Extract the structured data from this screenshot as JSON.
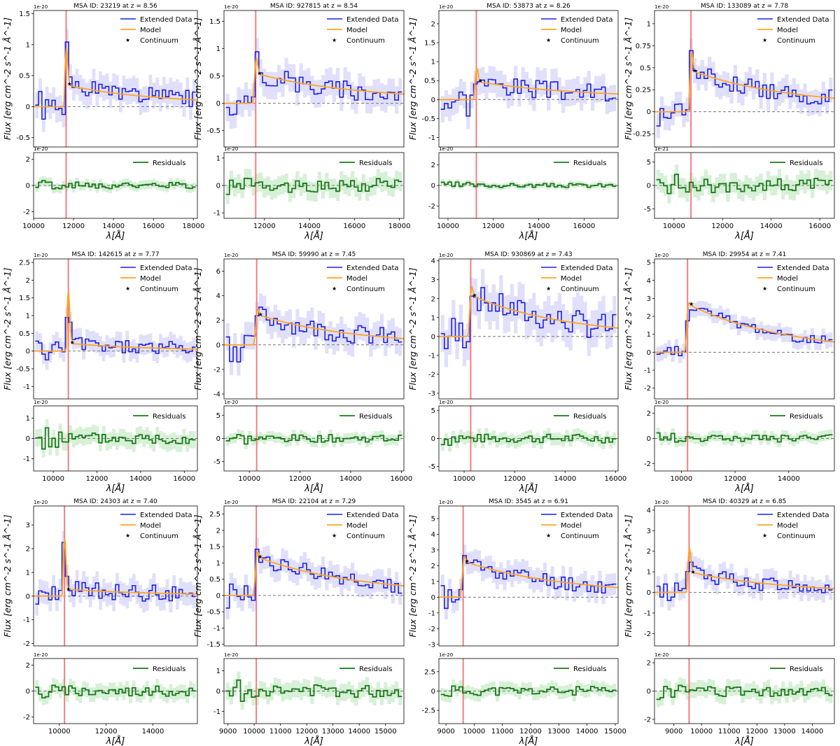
{
  "figure": {
    "legend_labels": {
      "data": "Extended Data",
      "model": "Model",
      "continuum": "Continuum",
      "residuals": "Residuals"
    },
    "ylabel_main": "Flux [erg cm⁻² s⁻¹ Å⁻¹]",
    "ylabel_main_display": "Flux [erg cm^-2 s^-1 Å^-1]",
    "xlabel": "λ[Å]",
    "colors": {
      "data": "#1f1fe8",
      "band": "#d5d5fb",
      "model": "#ffa51f",
      "continuum": "#000000",
      "residuals": "#1a7a1a",
      "resid_band": "#cdeccd",
      "lyalpha_line": "#f08080",
      "zero_line": "#777777"
    }
  },
  "chart_data": [
    {
      "type": "line",
      "title": "MSA ID: 23219 at z = 8.56",
      "exponent": "1e-20",
      "resid_exponent": "1e-20",
      "xlim": [
        10000,
        18200
      ],
      "ylim": [
        -0.65,
        1.55
      ],
      "yticks": [
        -0.5,
        0.0,
        0.5,
        1.0,
        1.5
      ],
      "rylim": [
        -2.5,
        2.5
      ],
      "ryticks": [
        -2,
        0,
        2
      ],
      "xticks": [
        10000,
        12000,
        14000,
        16000,
        18000
      ],
      "line_x": 11630,
      "peak_amp": 0.75,
      "cont_amp": 0.35,
      "slope": 0.25,
      "cont_point": [
        11600,
        0.37
      ],
      "noise": 0.15,
      "resid_noise": 0.25,
      "seed": 1,
      "legend_continuum": true
    },
    {
      "type": "line",
      "title": "MSA ID: 927815 at z = 8.54",
      "exponent": "1e-20",
      "resid_exponent": "1e-20",
      "xlim": [
        10200,
        18200
      ],
      "ylim": [
        -0.8,
        1.7
      ],
      "yticks": [
        -0.5,
        0.0,
        0.5,
        1.0,
        1.5
      ],
      "rylim": [
        -1.2,
        1.2
      ],
      "ryticks": [
        -1,
        0,
        1
      ],
      "xticks": [
        12000,
        14000,
        16000,
        18000
      ],
      "line_x": 11610,
      "peak_amp": 0.5,
      "cont_amp": 0.55,
      "slope": 0.25,
      "cont_point": [
        11610,
        0.55
      ],
      "noise": 0.18,
      "resid_noise": 0.25,
      "seed": 2,
      "legend_continuum": true
    },
    {
      "type": "line",
      "title": "MSA ID: 53873 at z = 8.26",
      "exponent": "1e-20",
      "resid_exponent": "1e-20",
      "xlim": [
        9600,
        17500
      ],
      "ylim": [
        -1.25,
        2.35
      ],
      "yticks": [
        -1.0,
        -0.5,
        0.0,
        0.5,
        1.0,
        1.5,
        2.0
      ],
      "rylim": [
        -3.2,
        3.2
      ],
      "ryticks": [
        -2,
        0,
        2
      ],
      "xticks": [
        10000,
        12000,
        14000,
        16000
      ],
      "line_x": 11250,
      "peak_amp": 0.55,
      "cont_amp": 0.48,
      "slope": 0.25,
      "cont_point": [
        11250,
        0.5
      ],
      "noise": 0.25,
      "resid_noise": 0.2,
      "seed": 3,
      "legend_continuum": true
    },
    {
      "type": "line",
      "title": "MSA ID: 133089 at z = 7.78",
      "exponent": "1e-20",
      "resid_exponent": "1e-21",
      "xlim": [
        9200,
        16600
      ],
      "ylim": [
        -0.4,
        1.15
      ],
      "yticks": [
        -0.25,
        0.0,
        0.25,
        0.5,
        0.75,
        1.0
      ],
      "rylim": [
        -7,
        7
      ],
      "ryticks": [
        -5,
        0,
        5
      ],
      "xticks": [
        10000,
        12000,
        14000,
        16000
      ],
      "line_x": 10700,
      "peak_amp": 0.38,
      "cont_amp": 0.47,
      "slope": 0.22,
      "cont_point": [
        10700,
        0.47
      ],
      "noise": 0.1,
      "resid_noise": 1.5,
      "seed": 4,
      "legend_continuum": true
    },
    {
      "type": "line",
      "title": "MSA ID: 142615 at z = 7.77",
      "exponent": "1e-20",
      "resid_exponent": "1e-20",
      "xlim": [
        9100,
        16600
      ],
      "ylim": [
        -1.35,
        2.6
      ],
      "yticks": [
        -1.0,
        -0.5,
        0.0,
        0.5,
        1.0,
        1.5,
        2.0,
        2.5
      ],
      "rylim": [
        -1.6,
        1.6
      ],
      "ryticks": [
        -1,
        0,
        1
      ],
      "xticks": [
        10000,
        12000,
        14000,
        16000
      ],
      "line_x": 10690,
      "peak_amp": 1.55,
      "cont_amp": 0.22,
      "slope": 0.4,
      "cont_point": [
        10690,
        0.25
      ],
      "noise": 0.2,
      "resid_noise": 0.3,
      "seed": 5,
      "legend_continuum": true
    },
    {
      "type": "line",
      "title": "MSA ID: 59990 at z = 7.45",
      "exponent": "1e-20",
      "resid_exponent": "1e-20",
      "xlim": [
        9000,
        16100
      ],
      "ylim": [
        -4.4,
        7.0
      ],
      "yticks": [
        -4,
        -2,
        0,
        2,
        4,
        6
      ],
      "rylim": [
        -7,
        7
      ],
      "ryticks": [
        -5,
        0,
        5
      ],
      "xticks": [
        10000,
        12000,
        14000,
        16000
      ],
      "line_x": 10290,
      "peak_amp": 1.2,
      "cont_amp": 2.5,
      "slope": 0.5,
      "cont_point": [
        10290,
        2.5
      ],
      "noise": 0.8,
      "resid_noise": 0.8,
      "seed": 6,
      "legend_continuum": true
    },
    {
      "type": "line",
      "title": "MSA ID: 930869 at z = 7.43",
      "exponent": "1e-20",
      "resid_exponent": "1e-20",
      "xlim": [
        9000,
        16100
      ],
      "ylim": [
        -3.3,
        4.1
      ],
      "yticks": [
        -3,
        -2,
        -1,
        0,
        1,
        2,
        3,
        4
      ],
      "rylim": [
        -5.8,
        5.8
      ],
      "ryticks": [
        -5,
        0,
        5
      ],
      "xticks": [
        10000,
        12000,
        14000,
        16000
      ],
      "line_x": 10260,
      "peak_amp": 1.1,
      "cont_amp": 2.2,
      "slope": 0.5,
      "cont_point": [
        10260,
        2.2
      ],
      "noise": 0.7,
      "resid_noise": 0.8,
      "seed": 7,
      "legend_continuum": true
    },
    {
      "type": "line",
      "title": "MSA ID: 29954 at z = 7.41",
      "exponent": "1e-20",
      "resid_exponent": "1e-20",
      "xlim": [
        9000,
        15700
      ],
      "ylim": [
        -2.6,
        5.2
      ],
      "yticks": [
        -2,
        -1,
        0,
        1,
        2,
        3,
        4,
        5
      ],
      "rylim": [
        -2.6,
        2.6
      ],
      "ryticks": [
        -2,
        0,
        2
      ],
      "xticks": [
        10000,
        12000,
        14000
      ],
      "line_x": 10230,
      "peak_amp": 0.7,
      "cont_amp": 2.7,
      "slope": 0.5,
      "cont_point": [
        10230,
        2.7
      ],
      "noise": 0.3,
      "resid_noise": 0.3,
      "seed": 8,
      "legend_continuum": true
    },
    {
      "type": "line",
      "title": "MSA ID: 24303 at z = 7.40",
      "exponent": "1e-20",
      "resid_exponent": "1e-20",
      "xlim": [
        8900,
        15900
      ],
      "ylim": [
        -2.1,
        3.8
      ],
      "yticks": [
        -2,
        -1,
        0,
        1,
        2,
        3
      ],
      "rylim": [
        -2.5,
        2.5
      ],
      "ryticks": [
        -2,
        0,
        2
      ],
      "xticks": [
        10000,
        12000,
        14000
      ],
      "line_x": 10220,
      "peak_amp": 2.3,
      "cont_amp": 0.3,
      "slope": 0.3,
      "cont_point": [
        10220,
        0.3
      ],
      "noise": 0.35,
      "resid_noise": 0.4,
      "seed": 9,
      "legend_continuum": true
    },
    {
      "type": "line",
      "title": "MSA ID: 22104 at z = 7.29",
      "exponent": "1e-20",
      "resid_exponent": "1e-20",
      "xlim": [
        8850,
        15700
      ],
      "ylim": [
        -1.55,
        2.75
      ],
      "yticks": [
        -1.5,
        -1.0,
        -0.5,
        0.0,
        0.5,
        1.0,
        1.5,
        2.0,
        2.5
      ],
      "rylim": [
        -1.6,
        1.6
      ],
      "ryticks": [
        -1,
        0,
        1
      ],
      "xticks": [
        9000,
        10000,
        11000,
        12000,
        13000,
        14000,
        15000
      ],
      "line_x": 10080,
      "peak_amp": 0.5,
      "cont_amp": 1.2,
      "slope": 0.4,
      "cont_point": [
        10080,
        1.2
      ],
      "noise": 0.25,
      "resid_noise": 0.3,
      "seed": 10,
      "legend_continuum": true
    },
    {
      "type": "line",
      "title": "MSA ID: 3545 at z = 6.91",
      "exponent": "1e-20",
      "resid_exponent": "1e-20",
      "xlim": [
        8750,
        15100
      ],
      "ylim": [
        -3.1,
        5.8
      ],
      "yticks": [
        -3,
        -2,
        -1,
        0,
        1,
        2,
        3,
        4,
        5
      ],
      "rylim": [
        -4.2,
        4.2
      ],
      "ryticks": [
        -2.5,
        0.0,
        2.5
      ],
      "xticks": [
        9000,
        10000,
        11000,
        12000,
        13000,
        14000,
        15000
      ],
      "line_x": 9610,
      "peak_amp": 1.0,
      "cont_amp": 2.3,
      "slope": 0.35,
      "cont_point": [
        9610,
        2.3
      ],
      "noise": 0.5,
      "resid_noise": 0.6,
      "seed": 11,
      "legend_continuum": true
    },
    {
      "type": "line",
      "title": "MSA ID: 40329 at z = 6.85",
      "exponent": "1e-20",
      "resid_exponent": "1e-20",
      "xlim": [
        8300,
        14800
      ],
      "ylim": [
        -2.6,
        4.2
      ],
      "yticks": [
        -2,
        -1,
        0,
        1,
        2,
        3,
        4
      ],
      "rylim": [
        -2.3,
        2.3
      ],
      "ryticks": [
        -2,
        0,
        2
      ],
      "xticks": [
        9000,
        10000,
        11000,
        12000,
        13000,
        14000
      ],
      "line_x": 9550,
      "peak_amp": 1.6,
      "cont_amp": 1.0,
      "slope": 0.55,
      "cont_point": [
        9550,
        1.0
      ],
      "noise": 0.35,
      "resid_noise": 0.4,
      "seed": 12,
      "legend_continuum": true
    }
  ]
}
